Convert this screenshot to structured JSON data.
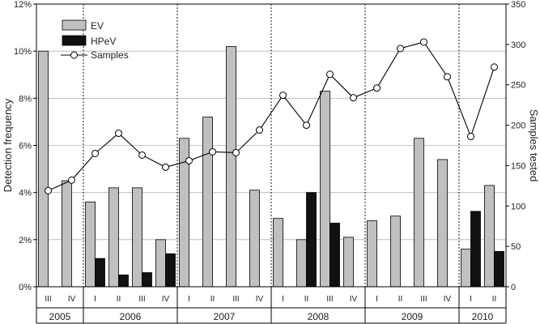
{
  "chart_data": {
    "type": "bar+line",
    "title": "",
    "ylabel_left": "Detection frequency",
    "ylabel_right": "Samples tested",
    "ylim_left": [
      0,
      12
    ],
    "ylim_right": [
      0,
      350
    ],
    "yticks_left": [
      "0%",
      "2%",
      "4%",
      "6%",
      "8%",
      "10%",
      "12%"
    ],
    "yticks_right": [
      "0",
      "50",
      "100",
      "150",
      "200",
      "250",
      "300",
      "350"
    ],
    "grid": "horizontal",
    "legend_position": "top-left",
    "years": [
      {
        "label": "2005",
        "quarters": [
          "III",
          "IV"
        ]
      },
      {
        "label": "2006",
        "quarters": [
          "I",
          "II",
          "III",
          "IV"
        ]
      },
      {
        "label": "2007",
        "quarters": [
          "I",
          "II",
          "III",
          "IV"
        ]
      },
      {
        "label": "2008",
        "quarters": [
          "I",
          "II",
          "III",
          "IV"
        ]
      },
      {
        "label": "2009",
        "quarters": [
          "I",
          "II",
          "III",
          "IV"
        ]
      },
      {
        "label": "2010",
        "quarters": [
          "I",
          "II"
        ]
      }
    ],
    "series": [
      {
        "name": "EV",
        "kind": "bar",
        "color": "#c0c0c0",
        "values": [
          10.0,
          4.5,
          3.6,
          4.2,
          4.2,
          2.0,
          6.3,
          7.2,
          10.2,
          4.1,
          2.9,
          2.0,
          8.3,
          2.1,
          2.8,
          3.0,
          6.3,
          5.4,
          1.6,
          4.3
        ]
      },
      {
        "name": "HPeV",
        "kind": "bar",
        "color": "#111111",
        "values": [
          0,
          0,
          1.2,
          0.5,
          0.6,
          1.4,
          0,
          0,
          0,
          0,
          0,
          4.0,
          2.7,
          0,
          0,
          0,
          0,
          0,
          3.2,
          1.5
        ]
      },
      {
        "name": "Samples",
        "kind": "line",
        "axis": "right",
        "color": "#000000",
        "values": [
          119,
          132,
          165,
          190,
          163,
          148,
          156,
          167,
          166,
          194,
          237,
          200,
          263,
          234,
          246,
          295,
          303,
          260,
          186,
          272
        ]
      }
    ]
  }
}
